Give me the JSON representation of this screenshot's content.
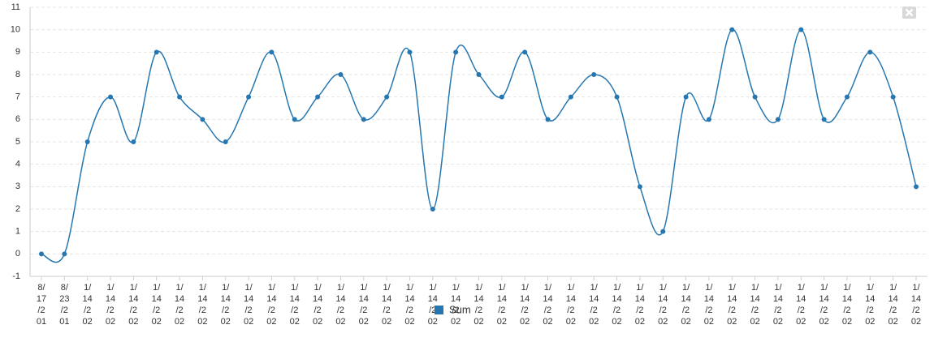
{
  "chart_data": {
    "type": "line",
    "categories": [
      "8/17/201",
      "8/23/201",
      "1/14/202",
      "1/14/202",
      "1/14/202",
      "1/14/202",
      "1/14/202",
      "1/14/202",
      "1/14/202",
      "1/14/202",
      "1/14/202",
      "1/14/202",
      "1/14/202",
      "1/14/202",
      "1/14/202",
      "1/14/202",
      "1/14/202",
      "1/14/202",
      "1/14/202",
      "1/14/202",
      "1/14/202",
      "1/14/202",
      "1/14/202",
      "1/14/202",
      "1/14/202",
      "1/14/202",
      "1/14/202",
      "1/14/202",
      "1/14/202",
      "1/14/202",
      "1/14/202",
      "1/14/202",
      "1/14/202",
      "1/14/202",
      "1/14/202",
      "1/14/202",
      "1/14/202",
      "1/14/202",
      "1/14/202"
    ],
    "series": [
      {
        "name": "Sum",
        "color": "#2677b0",
        "values": [
          0,
          0,
          5,
          7,
          5,
          9,
          7,
          6,
          5,
          7,
          9,
          6,
          7,
          8,
          6,
          7,
          9,
          2,
          9,
          8,
          7,
          9,
          6,
          7,
          8,
          7,
          3,
          1,
          7,
          6,
          10,
          7,
          6,
          10,
          6,
          7,
          9,
          7,
          3
        ]
      }
    ],
    "ylim": [
      -1,
      11
    ],
    "yticks": [
      -1,
      0,
      1,
      2,
      3,
      4,
      5,
      6,
      7,
      8,
      9,
      10,
      11
    ],
    "grid": true
  }
}
